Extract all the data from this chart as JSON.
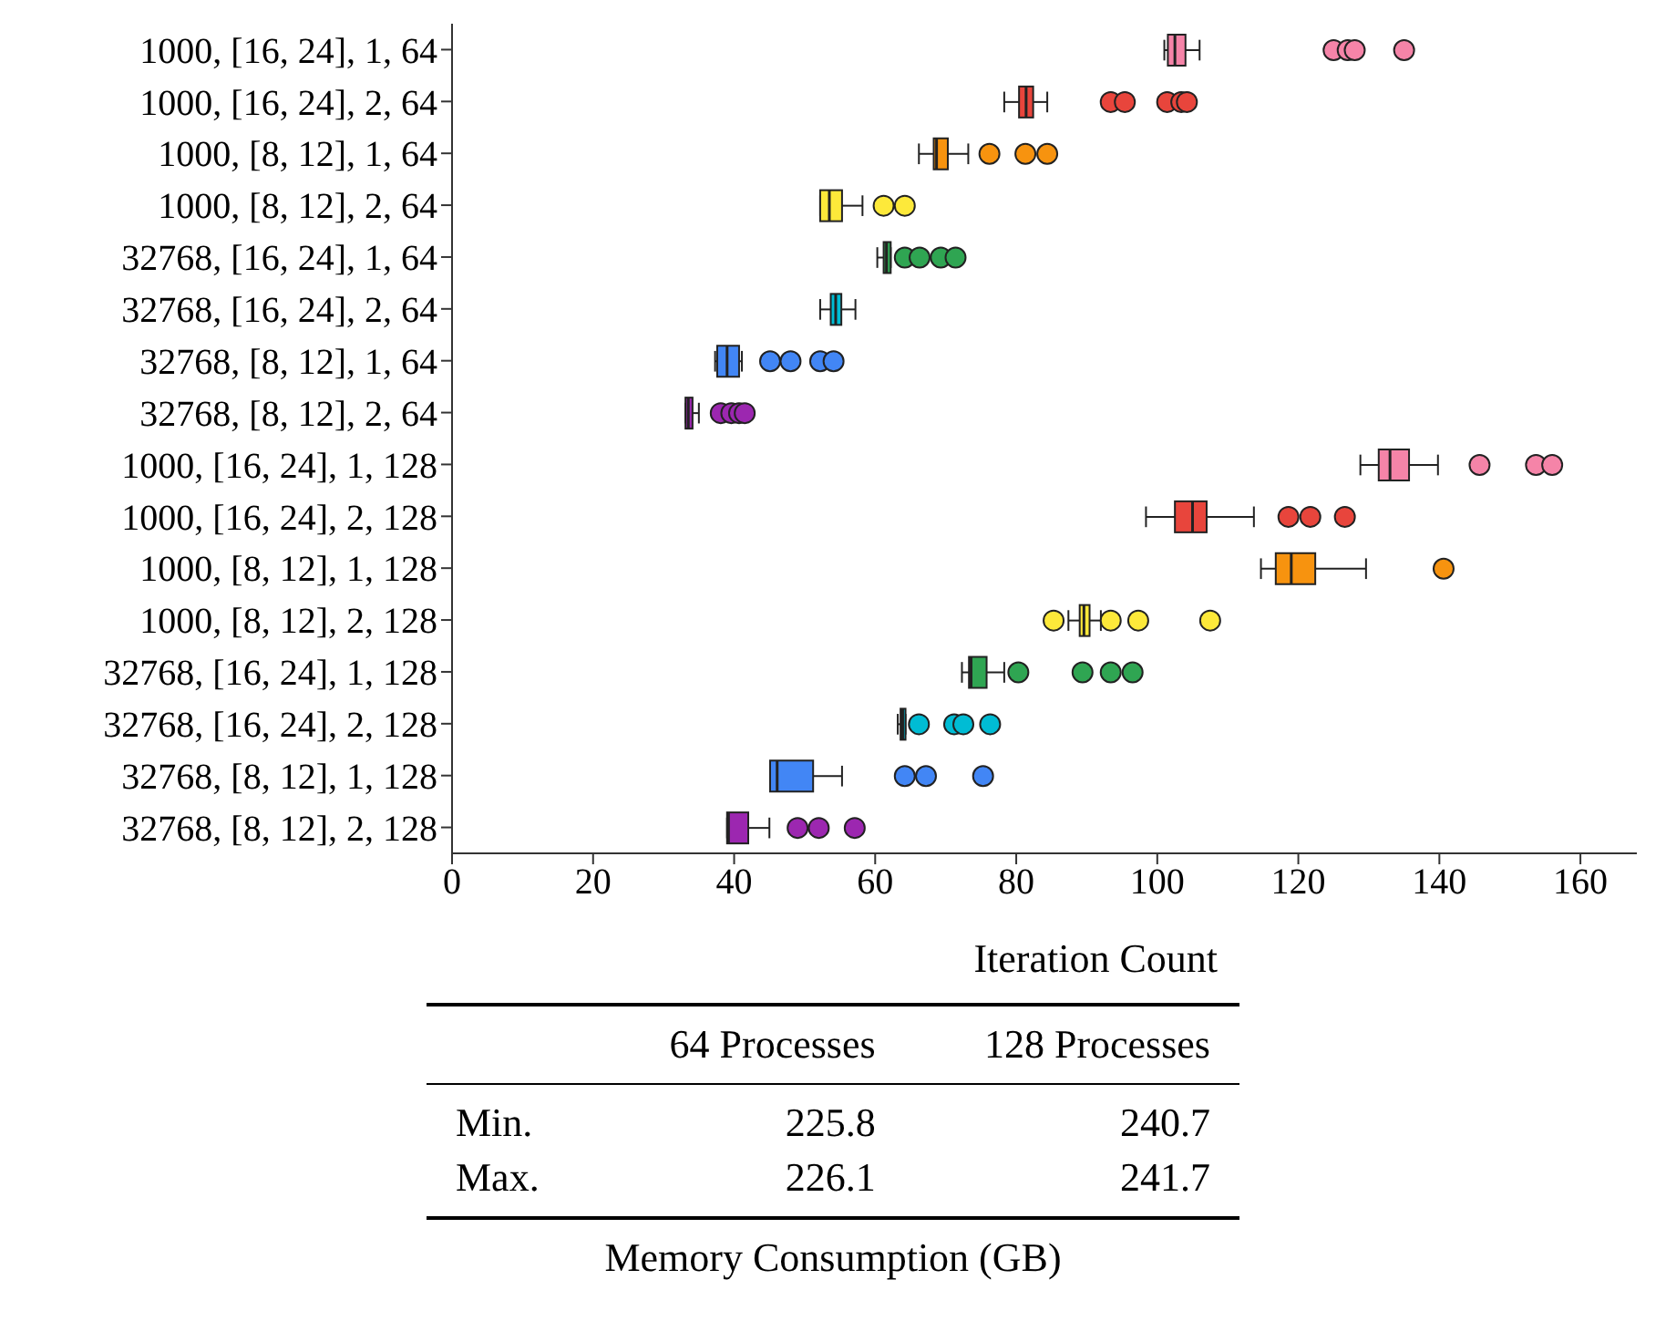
{
  "chart_data": [
    {
      "type": "box",
      "xlabel": "Iteration Count",
      "orientation": "horizontal",
      "categories": [
        "1000, [16, 24], 1, 64",
        "1000, [16, 24], 2, 64",
        "1000, [8, 12], 1, 64",
        "1000, [8, 12], 2, 64",
        "32768, [16, 24], 1, 64",
        "32768, [16, 24], 2, 64",
        "32768, [8, 12], 1, 64",
        "32768, [8, 12], 2, 64",
        "1000, [16, 24], 1, 128",
        "1000, [16, 24], 2, 128",
        "1000, [8, 12], 1, 128",
        "1000, [8, 12], 2, 128",
        "32768, [16, 24], 1, 128",
        "32768, [16, 24], 2, 128",
        "32768, [8, 12], 1, 128",
        "32768, [8, 12], 2, 128"
      ],
      "colors": [
        "#f584a8",
        "#e8453c",
        "#f7930f",
        "#fde93a",
        "#2fa552",
        "#00bcd4",
        "#4286f5",
        "#9c27b0",
        "#f584a8",
        "#e8453c",
        "#f7930f",
        "#fde93a",
        "#2fa552",
        "#00bcd4",
        "#4286f5",
        "#9c27b0"
      ],
      "boxes": [
        {
          "low": 101,
          "q1": 101.5,
          "median": 102.5,
          "q3": 104,
          "high": 106,
          "outliers": [
            125,
            127,
            128,
            135
          ]
        },
        {
          "low": 78.3,
          "q1": 80.4,
          "median": 81.4,
          "q3": 82.4,
          "high": 84.4,
          "outliers": [
            93.4,
            95.4,
            101.4,
            103.4,
            104.2
          ]
        },
        {
          "low": 66.2,
          "q1": 68.3,
          "median": 68.7,
          "q3": 70.3,
          "high": 73.2,
          "outliers": [
            76.2,
            81.3,
            84.4
          ]
        },
        {
          "low": 52.2,
          "q1": 52.2,
          "median": 53.5,
          "q3": 55.3,
          "high": 58.2,
          "outliers": [
            61.2,
            64.2
          ]
        },
        {
          "low": 60.3,
          "q1": 61.2,
          "median": 61.6,
          "q3": 62.2,
          "high": 62.2,
          "outliers": [
            64.2,
            66.3,
            69.3,
            71.4
          ]
        },
        {
          "low": 52.2,
          "q1": 53.7,
          "median": 54.4,
          "q3": 55.2,
          "high": 57.2
        },
        {
          "low": 37.3,
          "q1": 37.6,
          "median": 39,
          "q3": 40.7,
          "high": 41.1,
          "outliers": [
            45.1,
            48,
            52.2,
            54.1
          ]
        },
        {
          "low": 33.1,
          "q1": 33.1,
          "median": 33.5,
          "q3": 34.1,
          "high": 35,
          "outliers": [
            38.1,
            39.6,
            40.7,
            41.5
          ]
        },
        {
          "low": 128.8,
          "q1": 131.4,
          "median": 133,
          "q3": 135.7,
          "high": 139.8,
          "outliers": [
            145.7,
            153.7,
            156
          ]
        },
        {
          "low": 98.4,
          "q1": 102.5,
          "median": 105,
          "q3": 107,
          "high": 113.7,
          "outliers": [
            118.6,
            121.7,
            126.6
          ]
        },
        {
          "low": 114.7,
          "q1": 116.8,
          "median": 119,
          "q3": 122.4,
          "high": 129.6,
          "outliers": [
            140.6
          ]
        },
        {
          "low": 87.4,
          "q1": 89,
          "median": 89.6,
          "q3": 90.4,
          "high": 92,
          "outliers": [
            85.3,
            93.4,
            97.3,
            107.5
          ]
        },
        {
          "low": 72.3,
          "q1": 73.3,
          "median": 73.6,
          "q3": 75.8,
          "high": 78.3,
          "outliers": [
            80.3,
            89.4,
            93.4,
            96.5
          ]
        },
        {
          "low": 63.2,
          "q1": 63.6,
          "median": 63.9,
          "q3": 64.3,
          "high": 64.3,
          "outliers": [
            66.2,
            71.2,
            72.5,
            76.3
          ]
        },
        {
          "low": 45.1,
          "q1": 45.1,
          "median": 46.1,
          "q3": 51.2,
          "high": 55.3,
          "outliers": [
            64.2,
            67.2,
            75.3
          ]
        },
        {
          "low": 39,
          "q1": 39,
          "median": 39.2,
          "q3": 42,
          "high": 45,
          "outliers": [
            49,
            52,
            57.1
          ]
        }
      ],
      "xlim": [
        0,
        168
      ],
      "xticks": [
        0,
        20,
        40,
        60,
        80,
        100,
        120,
        140,
        160
      ]
    },
    {
      "type": "other",
      "title": "Memory Consumption (GB)",
      "categories": [
        "64 Processes",
        "128 Processes"
      ],
      "y_categories": [
        "Min.",
        "Max."
      ],
      "annotations": [
        "225.8",
        "240.7",
        "226.1",
        "241.7"
      ]
    }
  ]
}
